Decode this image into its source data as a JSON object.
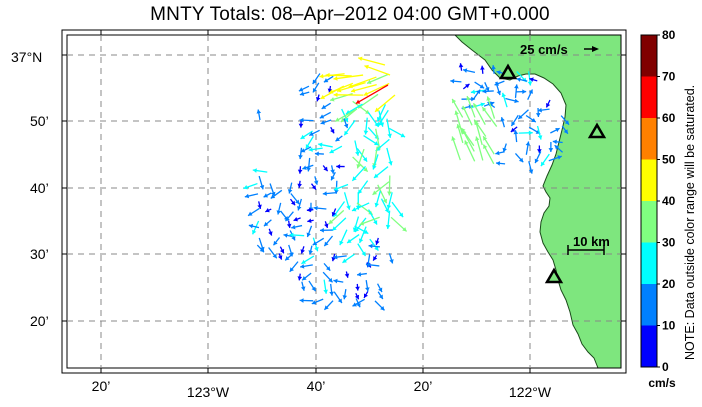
{
  "title": "MNTY Totals: 08–Apr–2012 04:00 GMT+0.000",
  "lat_labels": [
    "37°N",
    "50’",
    "40’",
    "30’",
    "20’"
  ],
  "lon_labels": [
    "20’",
    "123°W",
    "40’",
    "20’",
    "122°W"
  ],
  "scale_vector_label": "25 cm/s",
  "scale_bar_label": "10 km",
  "colorbar": {
    "ticks": [
      "80",
      "70",
      "60",
      "50",
      "40",
      "30",
      "20",
      "10",
      "0"
    ],
    "units": "cm/s",
    "colors": [
      "#800000",
      "#ff0000",
      "#ff8000",
      "#ffff00",
      "#80ff80",
      "#00ffff",
      "#0080ff",
      "#0000ff"
    ]
  },
  "note": "NOTE: Data outside color range will be saturated.",
  "land_color": "#7ee67e",
  "sites": [
    "radar-site-north",
    "radar-site-east",
    "radar-site-south"
  ]
}
